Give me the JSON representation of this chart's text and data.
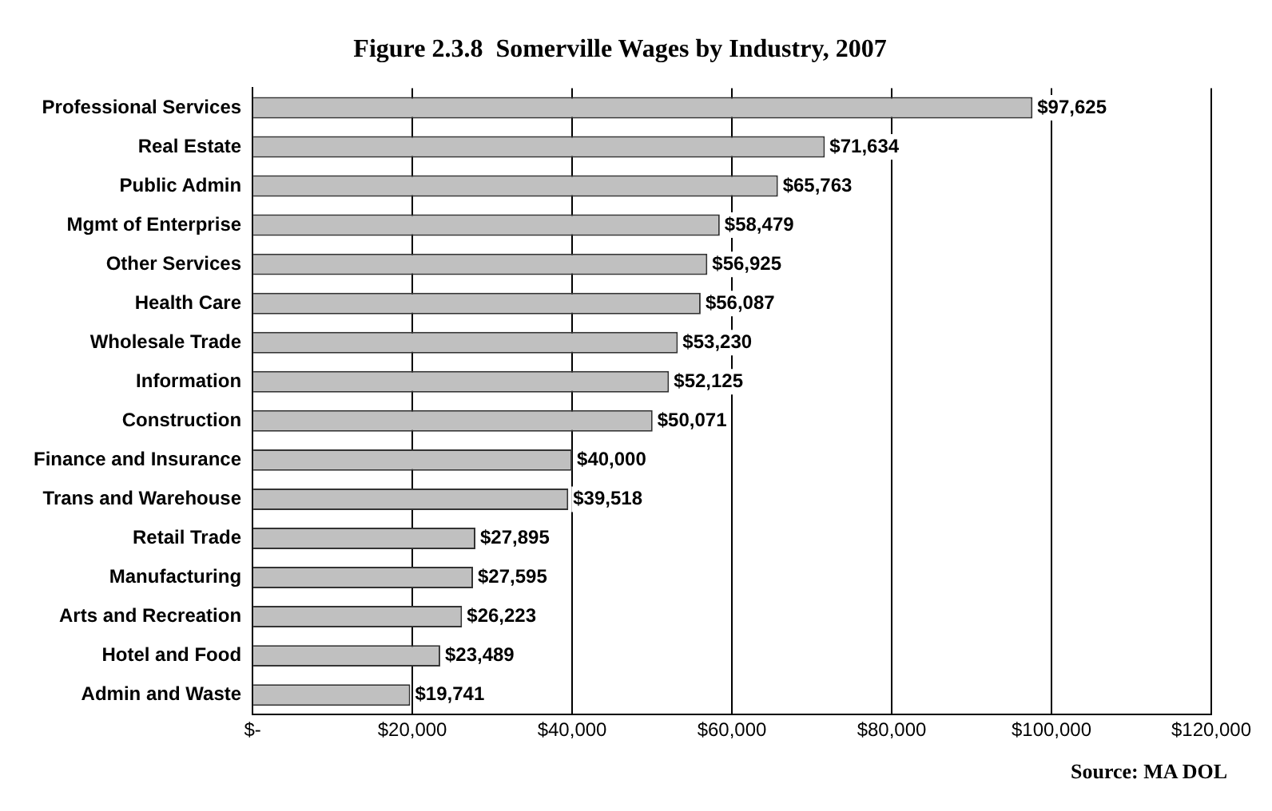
{
  "chart_data": {
    "type": "bar",
    "orientation": "horizontal",
    "title": "Figure 2.3.8  Somerville Wages by Industry, 2007",
    "categories": [
      "Professional Services",
      "Real Estate",
      "Public Admin",
      "Mgmt of Enterprise",
      "Other Services",
      "Health Care",
      "Wholesale Trade",
      "Information",
      "Construction",
      "Finance and Insurance",
      "Trans and Warehouse",
      "Retail Trade",
      "Manufacturing",
      "Arts and Recreation",
      "Hotel and Food",
      "Admin and Waste"
    ],
    "values": [
      97625,
      71634,
      65763,
      58479,
      56925,
      56087,
      53230,
      52125,
      50071,
      40000,
      39518,
      27895,
      27595,
      26223,
      23489,
      19741
    ],
    "value_labels": [
      "$97,625",
      "$71,634",
      "$65,763",
      "$58,479",
      "$56,925",
      "$56,087",
      "$53,230",
      "$52,125",
      "$50,071",
      "$40,000",
      "$39,518",
      "$27,895",
      "$27,595",
      "$26,223",
      "$23,489",
      "$19,741"
    ],
    "color": "#c0c0c0",
    "xlim": [
      0,
      120000
    ],
    "xticks": [
      {
        "value": 0,
        "label": "$-"
      },
      {
        "value": 20000,
        "label": "$20,000"
      },
      {
        "value": 40000,
        "label": "$40,000"
      },
      {
        "value": 60000,
        "label": "$60,000"
      },
      {
        "value": 80000,
        "label": "$80,000"
      },
      {
        "value": 100000,
        "label": "$100,000"
      },
      {
        "value": 120000,
        "label": "$120,000"
      }
    ],
    "grid": "x",
    "legend": false,
    "annotations": [
      "Source: MA DOL"
    ]
  }
}
